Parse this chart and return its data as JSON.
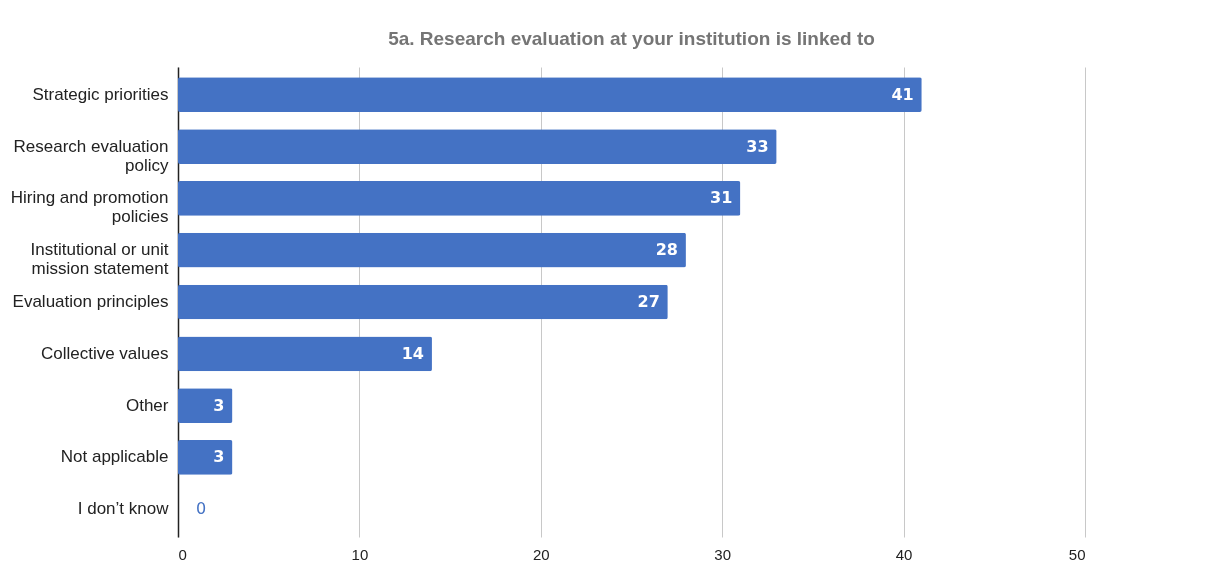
{
  "chart_data": {
    "type": "bar",
    "orientation": "horizontal",
    "title": "5a. Research evaluation at your institution is linked to",
    "categories": [
      "Strategic priorities",
      "Research evaluation policy",
      "Hiring and promotion policies",
      "Institutional or unit mission statement",
      "Evaluation principles",
      "Collective values",
      "Other",
      "Not applicable",
      "I don’t know"
    ],
    "values": [
      41,
      33,
      31,
      28,
      27,
      14,
      3,
      3,
      0
    ],
    "color": "#4472c4",
    "xlim": [
      0,
      50
    ],
    "xticks": [
      0,
      10,
      20,
      30,
      40,
      50
    ],
    "grid": "x",
    "data_labels": true
  }
}
